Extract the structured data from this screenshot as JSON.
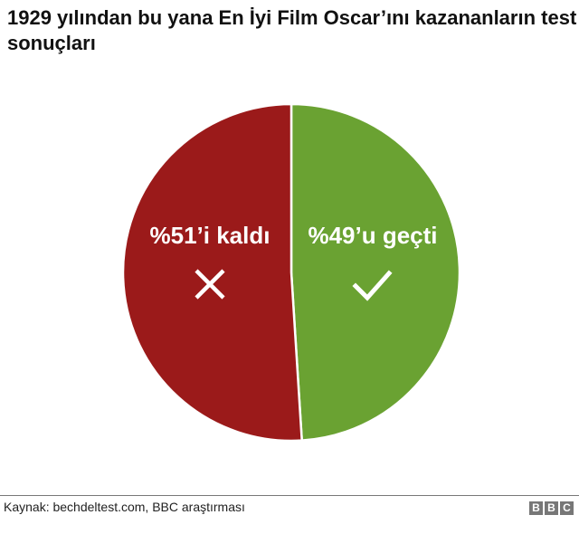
{
  "title": "1929 yılından bu yana En İyi Film Oscar’ını kazananların test sonuçları",
  "chart_data": {
    "type": "pie",
    "title": "1929 yılından bu yana En İyi Film Oscar’ını kazananların test sonuçları",
    "start": "top",
    "direction": "clockwise",
    "slices": [
      {
        "label": "%49’u geçti",
        "value": 49,
        "color": "#6aa232",
        "icon": "check-icon"
      },
      {
        "label": "%51’i kaldı",
        "value": 51,
        "color": "#9b1a1a",
        "icon": "cross-icon"
      }
    ]
  },
  "footer": {
    "source": "Kaynak: bechdeltest.com, BBC araştırması",
    "logo": [
      "B",
      "B",
      "C"
    ]
  }
}
